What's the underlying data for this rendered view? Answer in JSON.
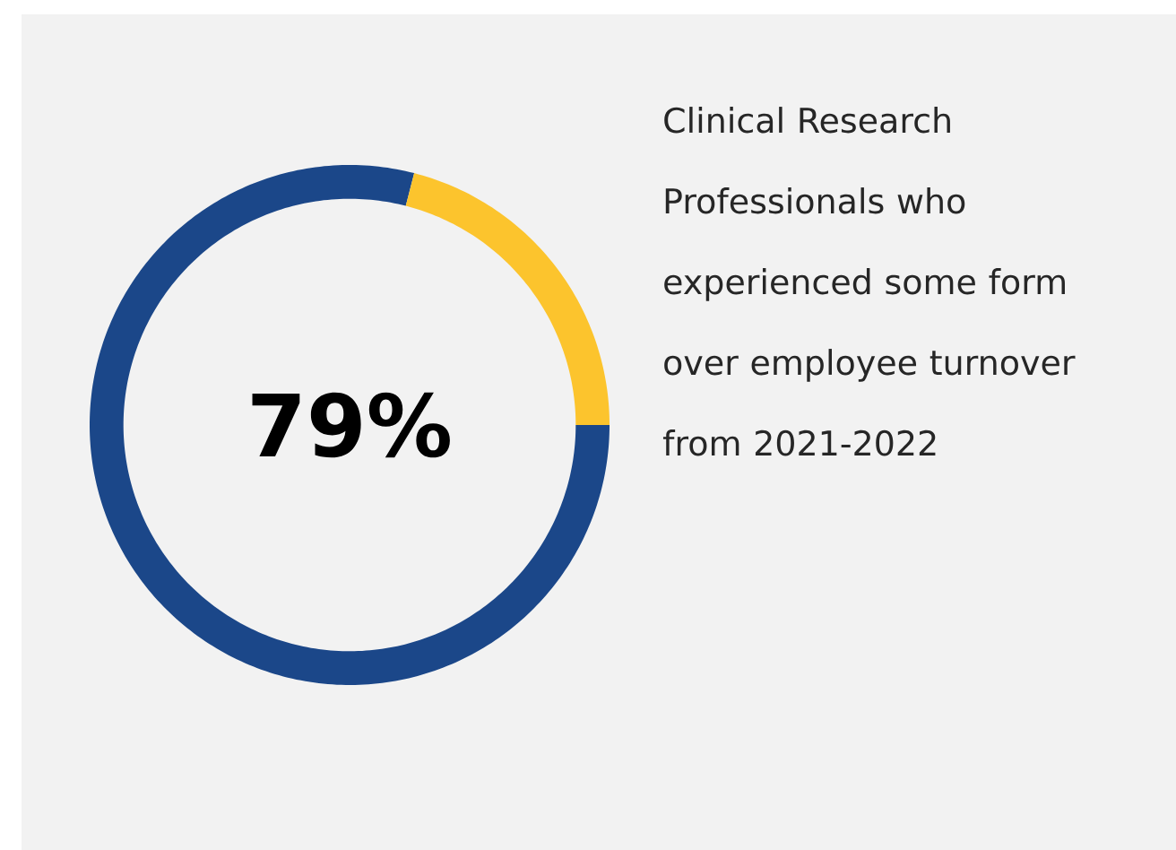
{
  "chart_data": {
    "type": "donut",
    "categories": [
      null,
      null
    ],
    "values": [
      79,
      21
    ],
    "colors": [
      "#1b4789",
      "#fcc42d"
    ],
    "value_labels": [
      "79%",
      null
    ],
    "annotations": [
      "Clinical Research Professionals who experienced some form over employee turnover from 2021-2022"
    ]
  }
}
